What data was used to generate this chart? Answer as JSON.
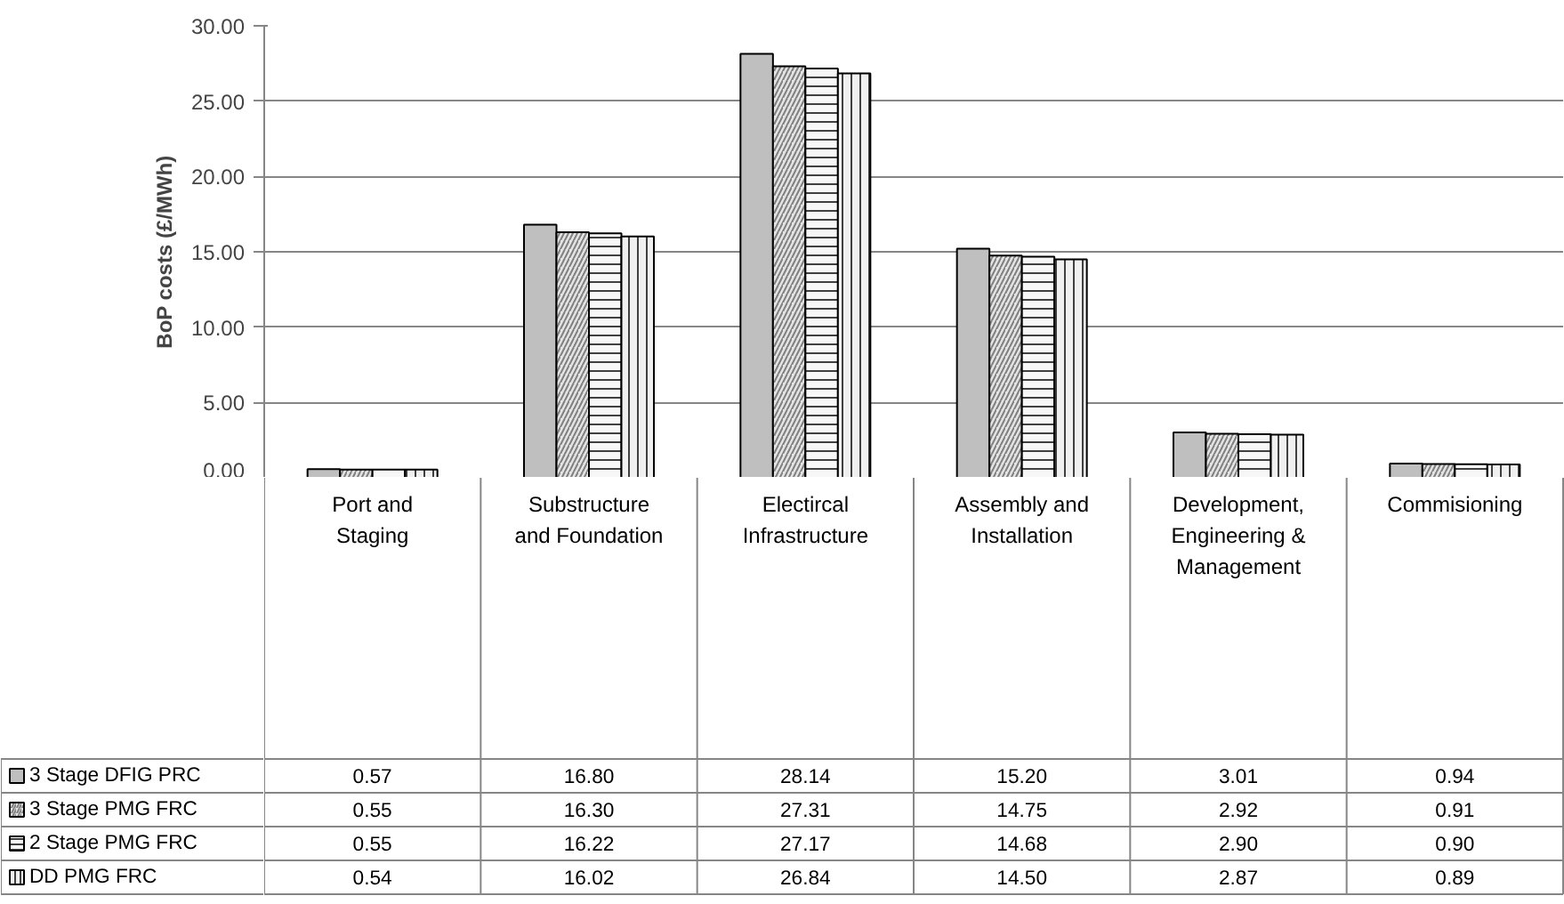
{
  "chart_data": {
    "type": "bar",
    "ylabel": "BoP costs (£/MWh)",
    "categories": [
      "Port and Staging",
      "Substructure and Foundation",
      "Electircal Infrastructure",
      "Assembly and Installation",
      "Development, Engineering & Management",
      "Commisioning"
    ],
    "series": [
      {
        "name": "3 Stage DFIG PRC",
        "color": "#bfbfbf",
        "values": [
          0.57,
          16.8,
          28.14,
          15.2,
          3.01,
          0.94
        ],
        "value_labels": [
          "0.57",
          "16.80",
          "28.14",
          "15.20",
          "3.01",
          "0.94"
        ]
      },
      {
        "name": "3 Stage PMG FRC",
        "color": "#e4e4e4",
        "values": [
          0.55,
          16.3,
          27.31,
          14.75,
          2.92,
          0.91
        ],
        "value_labels": [
          "0.55",
          "16.30",
          "27.31",
          "14.75",
          "2.92",
          "0.91"
        ]
      },
      {
        "name": "2 Stage PMG FRC",
        "color": "#f7f7f7",
        "values": [
          0.55,
          16.22,
          27.17,
          14.68,
          2.9,
          0.9
        ],
        "value_labels": [
          "0.55",
          "16.22",
          "27.17",
          "14.68",
          "2.90",
          "0.90"
        ]
      },
      {
        "name": "DD PMG FRC",
        "color": "#f0f0f0",
        "values": [
          0.54,
          16.02,
          26.84,
          14.5,
          2.87,
          0.89
        ],
        "value_labels": [
          "0.54",
          "16.02",
          "26.84",
          "14.50",
          "2.87",
          "0.89"
        ]
      }
    ],
    "ylim": [
      0,
      30
    ],
    "yticks": [
      {
        "value": 0,
        "label": "0.00"
      },
      {
        "value": 5,
        "label": "5.00"
      },
      {
        "value": 10,
        "label": "10.00"
      },
      {
        "value": 15,
        "label": "15.00"
      },
      {
        "value": 20,
        "label": "20.00"
      },
      {
        "value": 25,
        "label": "25.00"
      },
      {
        "value": 30,
        "label": "30.00"
      }
    ],
    "grid": "y",
    "legend": "bottom"
  }
}
